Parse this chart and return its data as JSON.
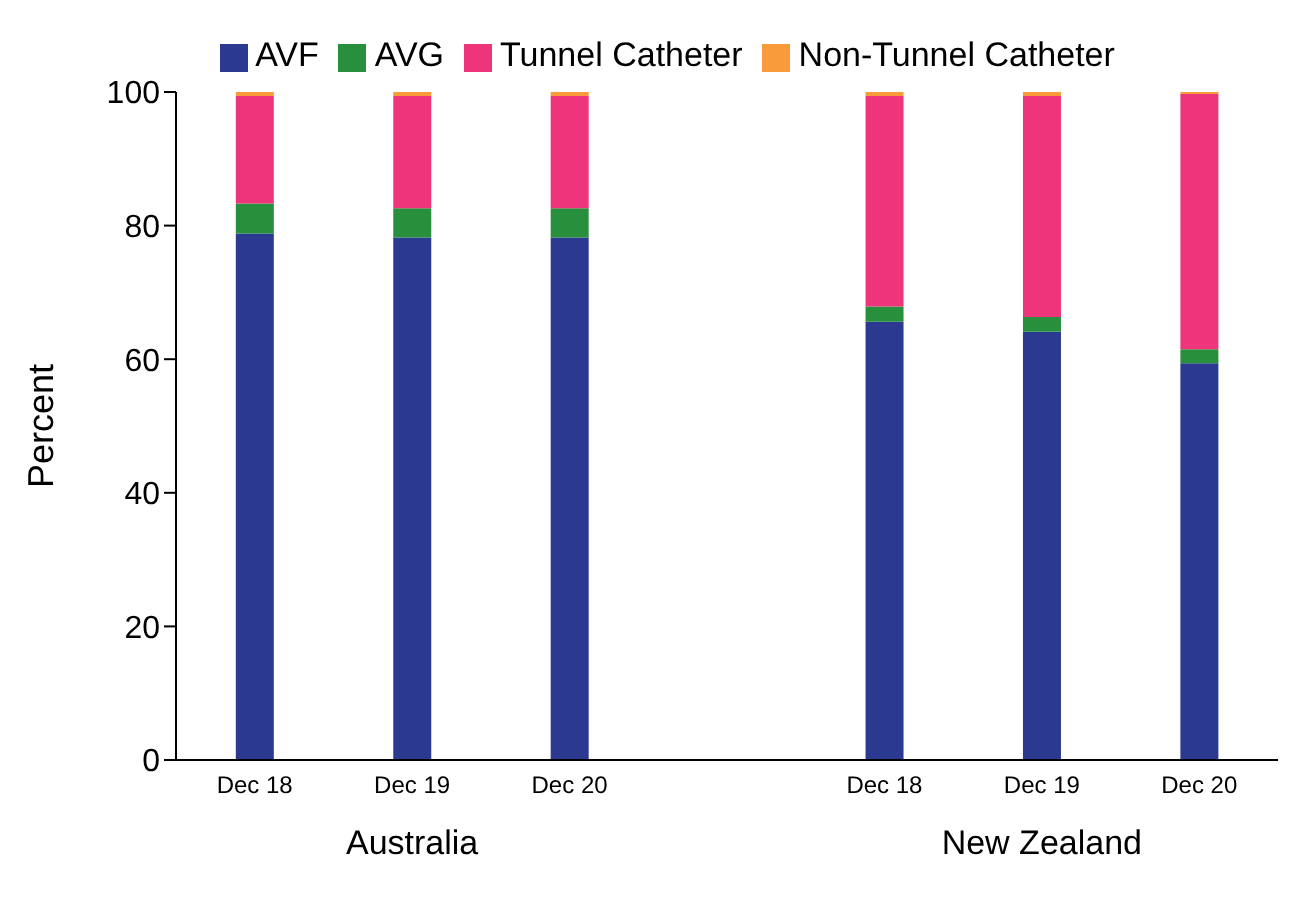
{
  "chart_data": {
    "type": "bar",
    "stacked": true,
    "ylabel": "Percent",
    "categories": [
      "Dec 18",
      "Dec 19",
      "Dec 20",
      null,
      "Dec 18",
      "Dec 19",
      "Dec 20"
    ],
    "series": [
      {
        "name": "AVF",
        "color": "#2b3990",
        "values": [
          78.8,
          78.2,
          78.2,
          null,
          65.6,
          64.1,
          59.4
        ]
      },
      {
        "name": "AVG",
        "color": "#28903c",
        "values": [
          4.5,
          4.4,
          4.4,
          null,
          2.3,
          2.2,
          2.1
        ]
      },
      {
        "name": "Tunnel Catheter",
        "color": "#ee357b",
        "values": [
          16.1,
          16.8,
          16.8,
          null,
          31.5,
          33.1,
          38.2
        ]
      },
      {
        "name": "Non-Tunnel Catheter",
        "color": "#f99a3b",
        "values": [
          0.6,
          0.6,
          0.6,
          null,
          0.6,
          0.6,
          0.3
        ]
      }
    ],
    "annotations": [
      "Australia",
      "New Zealand"
    ],
    "ylim": [
      0,
      100
    ],
    "yticks": [
      0,
      20,
      40,
      60,
      80,
      100
    ],
    "grid": false,
    "legend": "top"
  }
}
